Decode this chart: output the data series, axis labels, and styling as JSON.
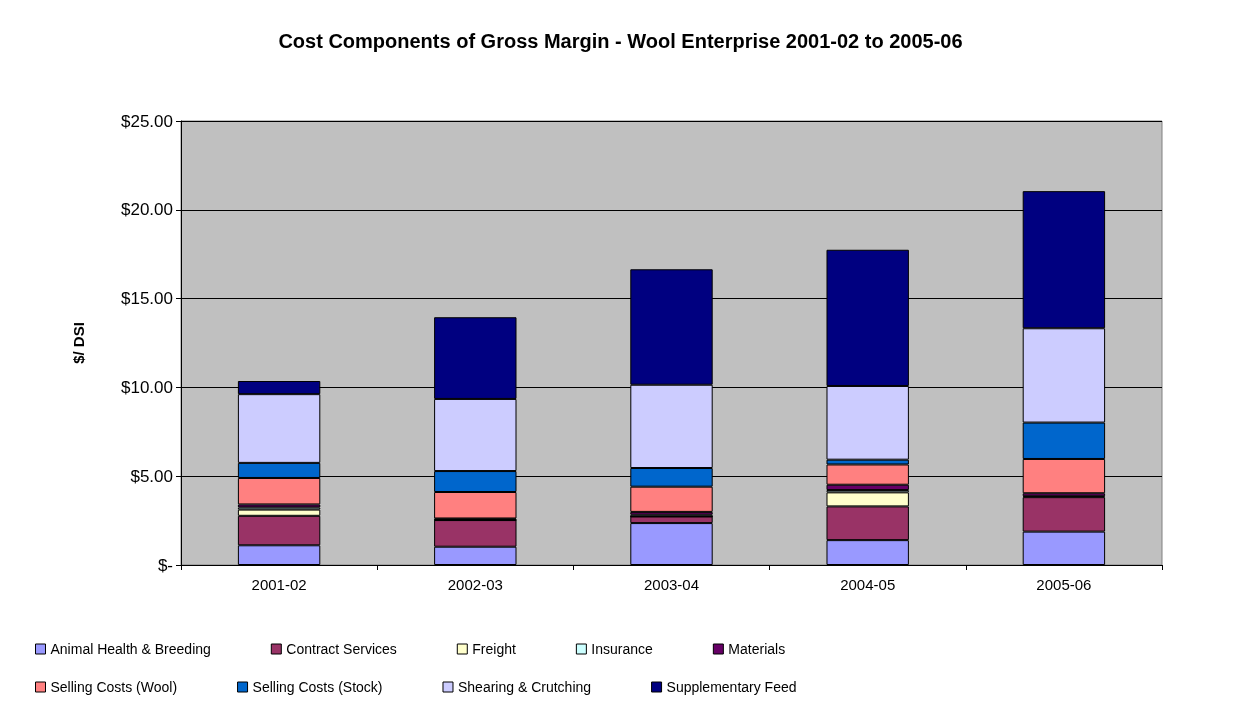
{
  "chart_data": {
    "type": "bar",
    "title": "Cost Components of Gross Margin - Wool Enterprise 2001-02 to 2005-06",
    "ylabel": "$/ DSI",
    "categories": [
      "2001-02",
      "2002-03",
      "2003-04",
      "2004-05",
      "2005-06"
    ],
    "stacked": true,
    "series": [
      {
        "name": "Animal Health & Breeding",
        "color": "#9999ff",
        "values": [
          1.11,
          1.03,
          2.36,
          1.4,
          1.88
        ]
      },
      {
        "name": "Contract Services",
        "color": "#993366",
        "values": [
          1.66,
          1.5,
          0.37,
          1.9,
          1.94
        ]
      },
      {
        "name": "Freight",
        "color": "#ffffcc",
        "values": [
          0.35,
          0,
          0,
          0.79,
          0.05
        ]
      },
      {
        "name": "Insurance",
        "color": "#ccffff",
        "values": [
          0.12,
          0.04,
          0.1,
          0.13,
          null
        ]
      },
      {
        "name": "Materials",
        "color": "#660066",
        "values": [
          0.17,
          0.05,
          0.16,
          0.3,
          0.17
        ]
      },
      {
        "name": "Selling Costs (Wool)",
        "color": "#ff8080",
        "values": [
          1.49,
          1.49,
          1.42,
          1.14,
          1.93
        ]
      },
      {
        "name": "Selling Costs (Stock)",
        "color": "#0066cc",
        "values": [
          0.85,
          1.18,
          1.05,
          0.27,
          2.05
        ]
      },
      {
        "name": "Shearing & Crutching",
        "color": "#ccccff",
        "values": [
          3.87,
          4.06,
          4.69,
          4.15,
          5.31
        ]
      },
      {
        "name": "Supplementary Feed",
        "color": "#000080",
        "values": [
          0.74,
          4.6,
          6.5,
          7.67,
          7.72
        ]
      }
    ],
    "ylim": [
      0,
      25
    ],
    "yticks": [
      {
        "value": 0,
        "label": "$-"
      },
      {
        "value": 5,
        "label": "$5.00"
      },
      {
        "value": 10,
        "label": "$10.00"
      },
      {
        "value": 15,
        "label": "$15.00"
      },
      {
        "value": 20,
        "label": "$20.00"
      },
      {
        "value": 25,
        "label": "$25.00"
      }
    ],
    "grid": "y",
    "legend": "bottom"
  }
}
